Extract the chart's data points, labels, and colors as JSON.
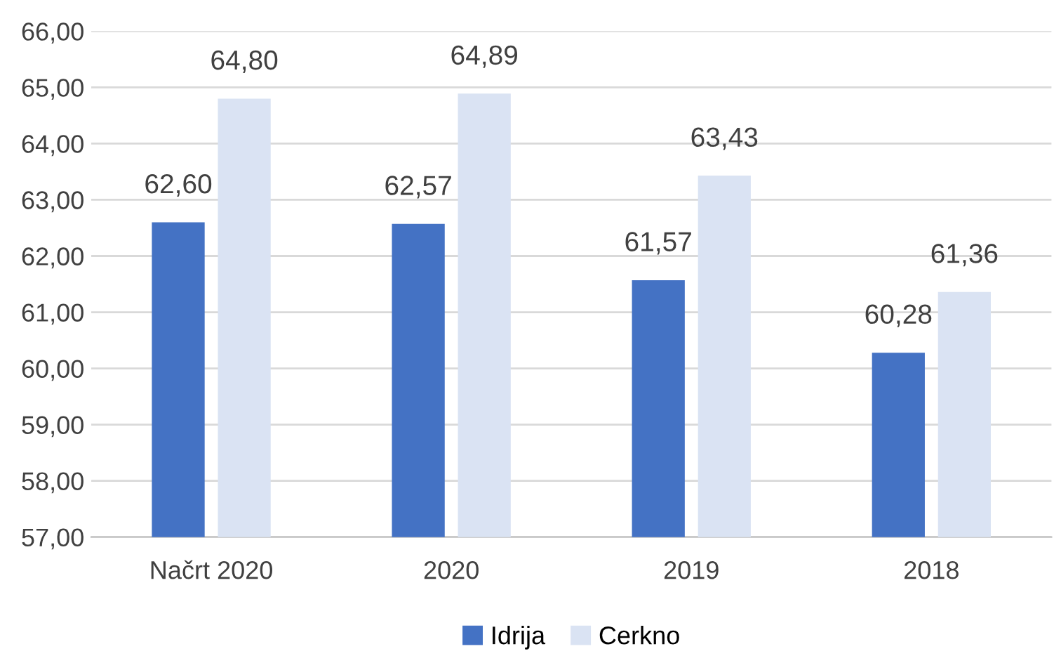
{
  "chart_data": {
    "type": "bar",
    "categories": [
      "Načrt 2020",
      "2020",
      "2019",
      "2018"
    ],
    "series": [
      {
        "name": "Idrija",
        "color": "#4472c4",
        "values": [
          62.6,
          62.57,
          61.57,
          60.28
        ],
        "value_labels": [
          "62,60",
          "62,57",
          "61,57",
          "60,28"
        ]
      },
      {
        "name": "Cerkno",
        "color": "#dae3f3",
        "values": [
          64.8,
          64.89,
          63.43,
          61.36
        ],
        "value_labels": [
          "64,80",
          "64,89",
          "63,43",
          "61,36"
        ]
      }
    ],
    "ylim": [
      57,
      66
    ],
    "yticks": [
      {
        "value": 57,
        "label": "57,00"
      },
      {
        "value": 58,
        "label": "58,00"
      },
      {
        "value": 59,
        "label": "59,00"
      },
      {
        "value": 60,
        "label": "60,00"
      },
      {
        "value": 61,
        "label": "61,00"
      },
      {
        "value": 62,
        "label": "62,00"
      },
      {
        "value": 63,
        "label": "63,00"
      },
      {
        "value": 64,
        "label": "64,00"
      },
      {
        "value": 65,
        "label": "65,00"
      },
      {
        "value": 66,
        "label": "66,00"
      }
    ],
    "grid": "y",
    "legend": "bottom"
  }
}
